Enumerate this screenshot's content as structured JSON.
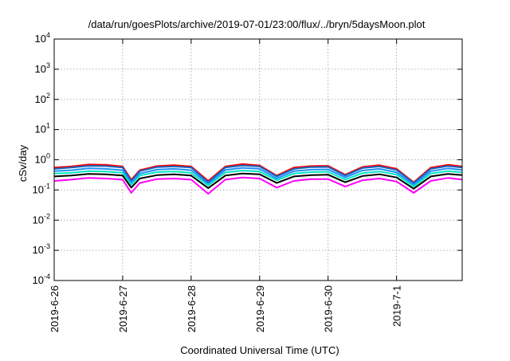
{
  "chart_data": {
    "type": "line",
    "title": "/data/run/goesPlots/archive/2019-07-01/23:00/flux/../bryn/5daysMoon.plot",
    "xlabel": "Coordinated Universal Time (UTC)",
    "ylabel": "cSv/day",
    "yscale": "log",
    "ylim": [
      0.0001,
      10000
    ],
    "xlim": [
      "2019-06-26 00:00",
      "2019-07-01 23:00"
    ],
    "grid": true,
    "x_ticks": [
      {
        "label": "2019-6-26",
        "value": "2019-06-26"
      },
      {
        "label": "2019-6-27",
        "value": "2019-06-27"
      },
      {
        "label": "2019-6-28",
        "value": "2019-06-28"
      },
      {
        "label": "2019-6-29",
        "value": "2019-06-29"
      },
      {
        "label": "2019-6-30",
        "value": "2019-06-30"
      },
      {
        "label": "2019-7-1",
        "value": "2019-07-01"
      }
    ],
    "y_ticks": [
      {
        "base": "10",
        "exp": "-4",
        "value": 0.0001
      },
      {
        "base": "10",
        "exp": "-3",
        "value": 0.001
      },
      {
        "base": "10",
        "exp": "-2",
        "value": 0.01
      },
      {
        "base": "10",
        "exp": "-1",
        "value": 0.1
      },
      {
        "base": "10",
        "exp": "0",
        "value": 1
      },
      {
        "base": "10",
        "exp": "1",
        "value": 10
      },
      {
        "base": "10",
        "exp": "2",
        "value": 100
      },
      {
        "base": "10",
        "exp": "3",
        "value": 1000
      },
      {
        "base": "10",
        "exp": "4",
        "value": 10000
      }
    ],
    "x": [
      "2019-06-26 00:00",
      "2019-06-26 06:00",
      "2019-06-26 12:00",
      "2019-06-26 18:00",
      "2019-06-27 00:00",
      "2019-06-27 03:00",
      "2019-06-27 06:00",
      "2019-06-27 12:00",
      "2019-06-27 18:00",
      "2019-06-28 00:00",
      "2019-06-28 06:00",
      "2019-06-28 12:00",
      "2019-06-28 18:00",
      "2019-06-29 00:00",
      "2019-06-29 06:00",
      "2019-06-29 12:00",
      "2019-06-29 18:00",
      "2019-06-30 00:00",
      "2019-06-30 06:00",
      "2019-06-30 12:00",
      "2019-06-30 18:00",
      "2019-07-01 00:00",
      "2019-07-01 06:00",
      "2019-07-01 12:00",
      "2019-07-01 18:00",
      "2019-07-01 23:00"
    ],
    "series": [
      {
        "color": "#ff0000",
        "values": [
          0.55,
          0.6,
          0.7,
          0.68,
          0.6,
          0.22,
          0.45,
          0.62,
          0.66,
          0.6,
          0.2,
          0.6,
          0.72,
          0.65,
          0.3,
          0.55,
          0.62,
          0.63,
          0.32,
          0.58,
          0.66,
          0.5,
          0.18,
          0.55,
          0.68,
          0.6
        ]
      },
      {
        "color": "#1565c0",
        "values": [
          0.5,
          0.55,
          0.63,
          0.62,
          0.55,
          0.2,
          0.42,
          0.57,
          0.6,
          0.55,
          0.18,
          0.55,
          0.65,
          0.6,
          0.28,
          0.5,
          0.57,
          0.58,
          0.3,
          0.53,
          0.6,
          0.46,
          0.17,
          0.5,
          0.62,
          0.55
        ]
      },
      {
        "color": "#1e90ff",
        "values": [
          0.42,
          0.45,
          0.52,
          0.5,
          0.45,
          0.17,
          0.35,
          0.47,
          0.5,
          0.45,
          0.16,
          0.46,
          0.54,
          0.5,
          0.24,
          0.42,
          0.47,
          0.48,
          0.26,
          0.44,
          0.5,
          0.38,
          0.15,
          0.42,
          0.52,
          0.46
        ]
      },
      {
        "color": "#00e5c0",
        "values": [
          0.35,
          0.37,
          0.42,
          0.41,
          0.37,
          0.15,
          0.3,
          0.39,
          0.41,
          0.37,
          0.14,
          0.38,
          0.44,
          0.41,
          0.21,
          0.35,
          0.39,
          0.4,
          0.22,
          0.36,
          0.41,
          0.32,
          0.13,
          0.35,
          0.42,
          0.38
        ]
      },
      {
        "color": "#000000",
        "values": [
          0.28,
          0.3,
          0.34,
          0.33,
          0.3,
          0.12,
          0.24,
          0.31,
          0.33,
          0.3,
          0.115,
          0.3,
          0.35,
          0.33,
          0.17,
          0.28,
          0.31,
          0.32,
          0.18,
          0.29,
          0.33,
          0.26,
          0.11,
          0.28,
          0.34,
          0.31
        ]
      },
      {
        "color": "#ff00ff",
        "values": [
          0.2,
          0.22,
          0.25,
          0.24,
          0.22,
          0.08,
          0.17,
          0.23,
          0.24,
          0.22,
          0.075,
          0.22,
          0.26,
          0.24,
          0.12,
          0.2,
          0.23,
          0.23,
          0.13,
          0.21,
          0.24,
          0.19,
          0.08,
          0.2,
          0.25,
          0.22
        ]
      }
    ]
  }
}
